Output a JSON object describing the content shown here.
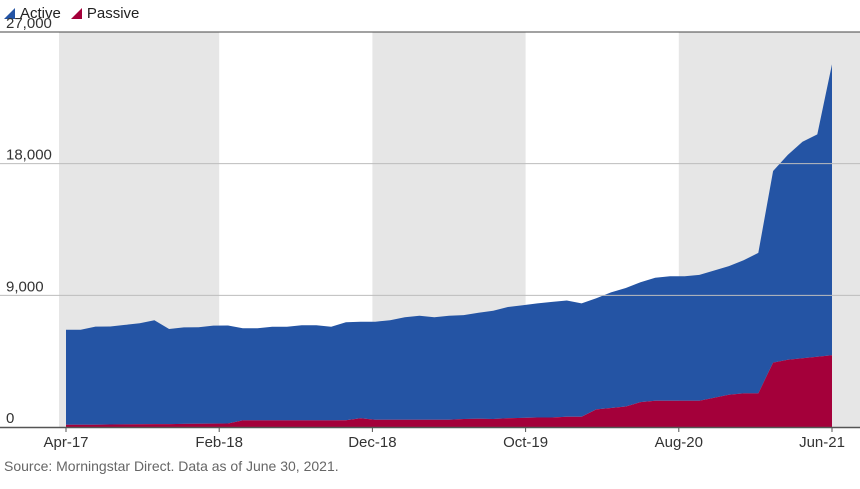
{
  "legend": [
    {
      "label": "Active",
      "color": "#2454a4"
    },
    {
      "label": "Passive",
      "color": "#a4003a"
    }
  ],
  "source": "Source: Morningstar Direct. Data as of June 30, 2021.",
  "colors": {
    "active": "#2454a4",
    "passive": "#a4003a",
    "shade": "#e6e6e6",
    "grid": "#bdbdbd",
    "baseline": "#555555"
  },
  "chart_data": {
    "type": "area",
    "stacked": true,
    "x_start": "2017-04",
    "x_end": "2021-06",
    "x_ticks": [
      "Apr-17",
      "Feb-18",
      "Dec-18",
      "Oct-19",
      "Aug-20",
      "Jun-21"
    ],
    "y_ticks": [
      "0",
      "9,000",
      "18,000",
      "27,000"
    ],
    "ylim": [
      0,
      27000
    ],
    "grid": "horizontal",
    "legend_position": "top-left",
    "shaded_bands": [
      [
        "2017-04",
        "2018-02"
      ],
      [
        "2018-12",
        "2019-10"
      ],
      [
        "2020-08",
        "2021-06"
      ]
    ],
    "series": [
      {
        "name": "Passive",
        "values": [
          150,
          150,
          160,
          170,
          180,
          190,
          200,
          200,
          210,
          220,
          230,
          240,
          450,
          450,
          450,
          450,
          450,
          450,
          450,
          460,
          600,
          500,
          500,
          500,
          500,
          500,
          500,
          550,
          560,
          550,
          600,
          620,
          650,
          650,
          700,
          700,
          1200,
          1300,
          1400,
          1700,
          1800,
          1800,
          1800,
          1800,
          2000,
          2200,
          2300,
          2300,
          4400,
          4600,
          4700,
          4800,
          4900
        ]
      },
      {
        "name": "Active",
        "values": [
          6500,
          6500,
          6700,
          6700,
          6800,
          6900,
          7100,
          6500,
          6600,
          6600,
          6700,
          6700,
          6300,
          6300,
          6400,
          6400,
          6500,
          6500,
          6400,
          6700,
          6600,
          6700,
          6800,
          7000,
          7100,
          7000,
          7100,
          7100,
          7250,
          7400,
          7600,
          7700,
          7800,
          7900,
          7950,
          7750,
          7600,
          7900,
          8100,
          8200,
          8400,
          8500,
          8500,
          8600,
          8700,
          8800,
          9100,
          9600,
          13100,
          14000,
          14800,
          15200,
          19900
        ]
      }
    ]
  }
}
